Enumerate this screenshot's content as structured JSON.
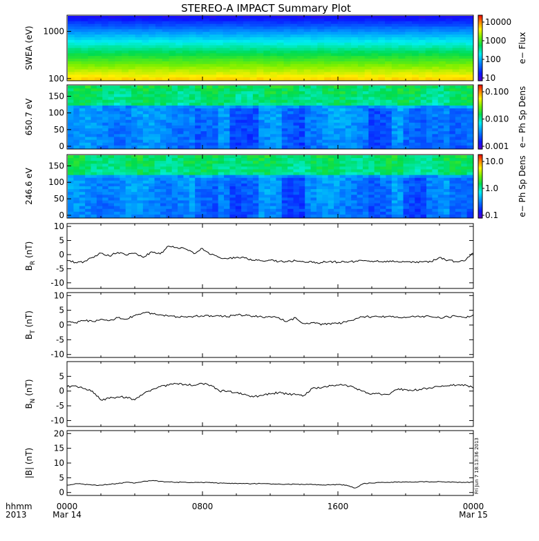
{
  "title": "STEREO-A IMPACT Summary Plot",
  "bottom_label": {
    "line1": "hhmm",
    "line2": "2013"
  },
  "x_axis": {
    "ticks": [
      {
        "top": "0000",
        "bottom": "Mar 14"
      },
      {
        "top": "0800",
        "bottom": ""
      },
      {
        "top": "1600",
        "bottom": ""
      },
      {
        "top": "0000",
        "bottom": "Mar 15"
      }
    ]
  },
  "timestamp": "Fri Jun  7 18:13:36 2013",
  "colors": {
    "line": "#000000",
    "frame": "#000000"
  },
  "chart_data": [
    {
      "type": "heatmap",
      "ylabel": "SWEA (eV)",
      "yscale": "log",
      "yticks": [
        "1000",
        "100"
      ],
      "colorbar": {
        "label": "e− Flux",
        "scale": "log",
        "ticks": [
          "10000",
          "1000",
          "100",
          "10"
        ]
      },
      "description_levels_log10": {
        "low_energy": 3.9,
        "mid_energy": 2.8,
        "high_energy": 0.6
      }
    },
    {
      "type": "heatmap",
      "ylabel": "650.7 eV",
      "yticks": [
        "150",
        "100",
        "50",
        "0"
      ],
      "ylim": [
        0,
        180
      ],
      "colorbar": {
        "label": "e− Ph Sp Dens",
        "scale": "log",
        "ticks": [
          "0.100",
          "0.010",
          "0.001"
        ]
      }
    },
    {
      "type": "heatmap",
      "ylabel": "246.6 eV",
      "yticks": [
        "150",
        "100",
        "50",
        "0"
      ],
      "ylim": [
        0,
        180
      ],
      "colorbar": {
        "label": "e− Ph Sp Dens",
        "scale": "log",
        "ticks": [
          "10.0",
          "1.0",
          "0.1"
        ]
      }
    },
    {
      "type": "line",
      "ylabel": "B",
      "ysub": "R",
      "yunit": "(nT)",
      "yticks": [
        "10",
        "5",
        "0",
        "-5",
        "-10"
      ],
      "ylim": [
        -12,
        11
      ],
      "x_hours": [
        0,
        0.5,
        1,
        1.5,
        2,
        2.5,
        3,
        3.5,
        4,
        4.5,
        5,
        5.5,
        6,
        6.5,
        7,
        7.5,
        8,
        8.5,
        9,
        9.5,
        10,
        10.5,
        11,
        11.5,
        12,
        12.5,
        13,
        13.5,
        14,
        14.5,
        15,
        15.5,
        16,
        16.5,
        17,
        17.5,
        18,
        18.5,
        19,
        19.5,
        20,
        20.5,
        21,
        21.5,
        22,
        22.5,
        23,
        23.5,
        24
      ],
      "values": [
        -2,
        -2.8,
        -2.5,
        -1,
        0.5,
        -0.5,
        0.8,
        -0.2,
        0.5,
        -1,
        1,
        0.2,
        3,
        2.5,
        2,
        0.3,
        2.2,
        0,
        -1,
        -1.5,
        -1,
        -1.2,
        -2,
        -2.2,
        -2,
        -2.5,
        -2.5,
        -2.2,
        -2.6,
        -2.8,
        -2.8,
        -2.4,
        -2.7,
        -2.6,
        -2.5,
        -2.2,
        -2.3,
        -2.5,
        -2.6,
        -2.4,
        -2.5,
        -2.6,
        -2.6,
        -2.5,
        -1,
        -2,
        -2.5,
        -2.2,
        0.5
      ]
    },
    {
      "type": "line",
      "ylabel": "B",
      "ysub": "T",
      "yunit": "(nT)",
      "yticks": [
        "10",
        "5",
        "0",
        "-5",
        "-10"
      ],
      "ylim": [
        -11,
        11
      ],
      "x_hours": [
        0,
        0.5,
        1,
        1.5,
        2,
        2.5,
        3,
        3.5,
        4,
        4.5,
        5,
        5.5,
        6,
        6.5,
        7,
        7.5,
        8,
        8.5,
        9,
        9.5,
        10,
        10.5,
        11,
        11.5,
        12,
        12.5,
        13,
        13.5,
        14,
        14.5,
        15,
        15.5,
        16,
        16.5,
        17,
        17.5,
        18,
        18.5,
        19,
        19.5,
        20,
        20.5,
        21,
        21.5,
        22,
        22.5,
        23,
        23.5,
        24
      ],
      "values": [
        1,
        0.8,
        1.5,
        1.2,
        2,
        1.5,
        2.5,
        2,
        3.2,
        4.2,
        4,
        3.5,
        3,
        2.8,
        2.8,
        3,
        3,
        3.2,
        3,
        2.8,
        3.5,
        3.2,
        3,
        2.8,
        2.8,
        2.5,
        1.2,
        2.5,
        0.5,
        0.8,
        0,
        0.5,
        0.5,
        1,
        2,
        2.8,
        2.8,
        2.8,
        3,
        2.8,
        2.5,
        2.8,
        3,
        2.8,
        2.5,
        2.8,
        3,
        2.5,
        3.5
      ]
    },
    {
      "type": "line",
      "ylabel": "B",
      "ysub": "N",
      "yunit": "(nT)",
      "yticks": [
        "5",
        "0",
        "-5",
        "-10"
      ],
      "ylim": [
        -12,
        10
      ],
      "x_hours": [
        0,
        0.5,
        1,
        1.5,
        2,
        2.5,
        3,
        3.5,
        4,
        4.5,
        5,
        5.5,
        6,
        6.5,
        7,
        7.5,
        8,
        8.5,
        9,
        9.5,
        10,
        10.5,
        11,
        11.5,
        12,
        12.5,
        13,
        13.5,
        14,
        14.5,
        15,
        15.5,
        16,
        16.5,
        17,
        17.5,
        18,
        18.5,
        19,
        19.5,
        20,
        20.5,
        21,
        21.5,
        22,
        22.5,
        23,
        23.5,
        24
      ],
      "values": [
        1.5,
        1.8,
        0.8,
        0,
        -3,
        -2.5,
        -2,
        -2,
        -3,
        -1,
        0.5,
        1.5,
        2,
        2.5,
        2.3,
        2,
        2.5,
        2,
        0,
        0,
        -0.5,
        -1,
        -2,
        -1.5,
        -1,
        -0.5,
        -1,
        -1.2,
        -1.5,
        1,
        1,
        2,
        2,
        2,
        1,
        0,
        -1,
        -1,
        -1.2,
        0.5,
        0.5,
        0.3,
        0.8,
        1,
        1.5,
        1.8,
        2,
        2.2,
        1
      ]
    },
    {
      "type": "line",
      "ylabel": "|B|",
      "yunit": "(nT)",
      "yticks": [
        "20",
        "15",
        "10",
        "5",
        "0"
      ],
      "ylim": [
        -1,
        21
      ],
      "x_hours": [
        0,
        0.5,
        1,
        1.5,
        2,
        2.5,
        3,
        3.5,
        4,
        4.5,
        5,
        5.5,
        6,
        6.5,
        7,
        7.5,
        8,
        8.5,
        9,
        9.5,
        10,
        10.5,
        11,
        11.5,
        12,
        12.5,
        13,
        13.5,
        14,
        14.5,
        15,
        15.5,
        16,
        16.5,
        17,
        17.5,
        18,
        18.5,
        19,
        19.5,
        20,
        20.5,
        21,
        21.5,
        22,
        22.5,
        23,
        23.5,
        24
      ],
      "values": [
        2.5,
        3,
        2.8,
        2.5,
        2.5,
        2.8,
        3,
        3.5,
        3.2,
        3.8,
        4,
        3.8,
        3.6,
        3.5,
        3.5,
        3.4,
        3.4,
        3.3,
        3.2,
        3.1,
        3.1,
        3,
        3,
        3,
        2.9,
        2.9,
        2.8,
        2.8,
        2.7,
        2.7,
        2.6,
        2.6,
        2.7,
        2.5,
        1.5,
        3,
        3.2,
        3.4,
        3.4,
        3.5,
        3.6,
        3.5,
        3.7,
        3.6,
        3.7,
        3.6,
        3.5,
        3.4,
        3.5
      ]
    }
  ]
}
